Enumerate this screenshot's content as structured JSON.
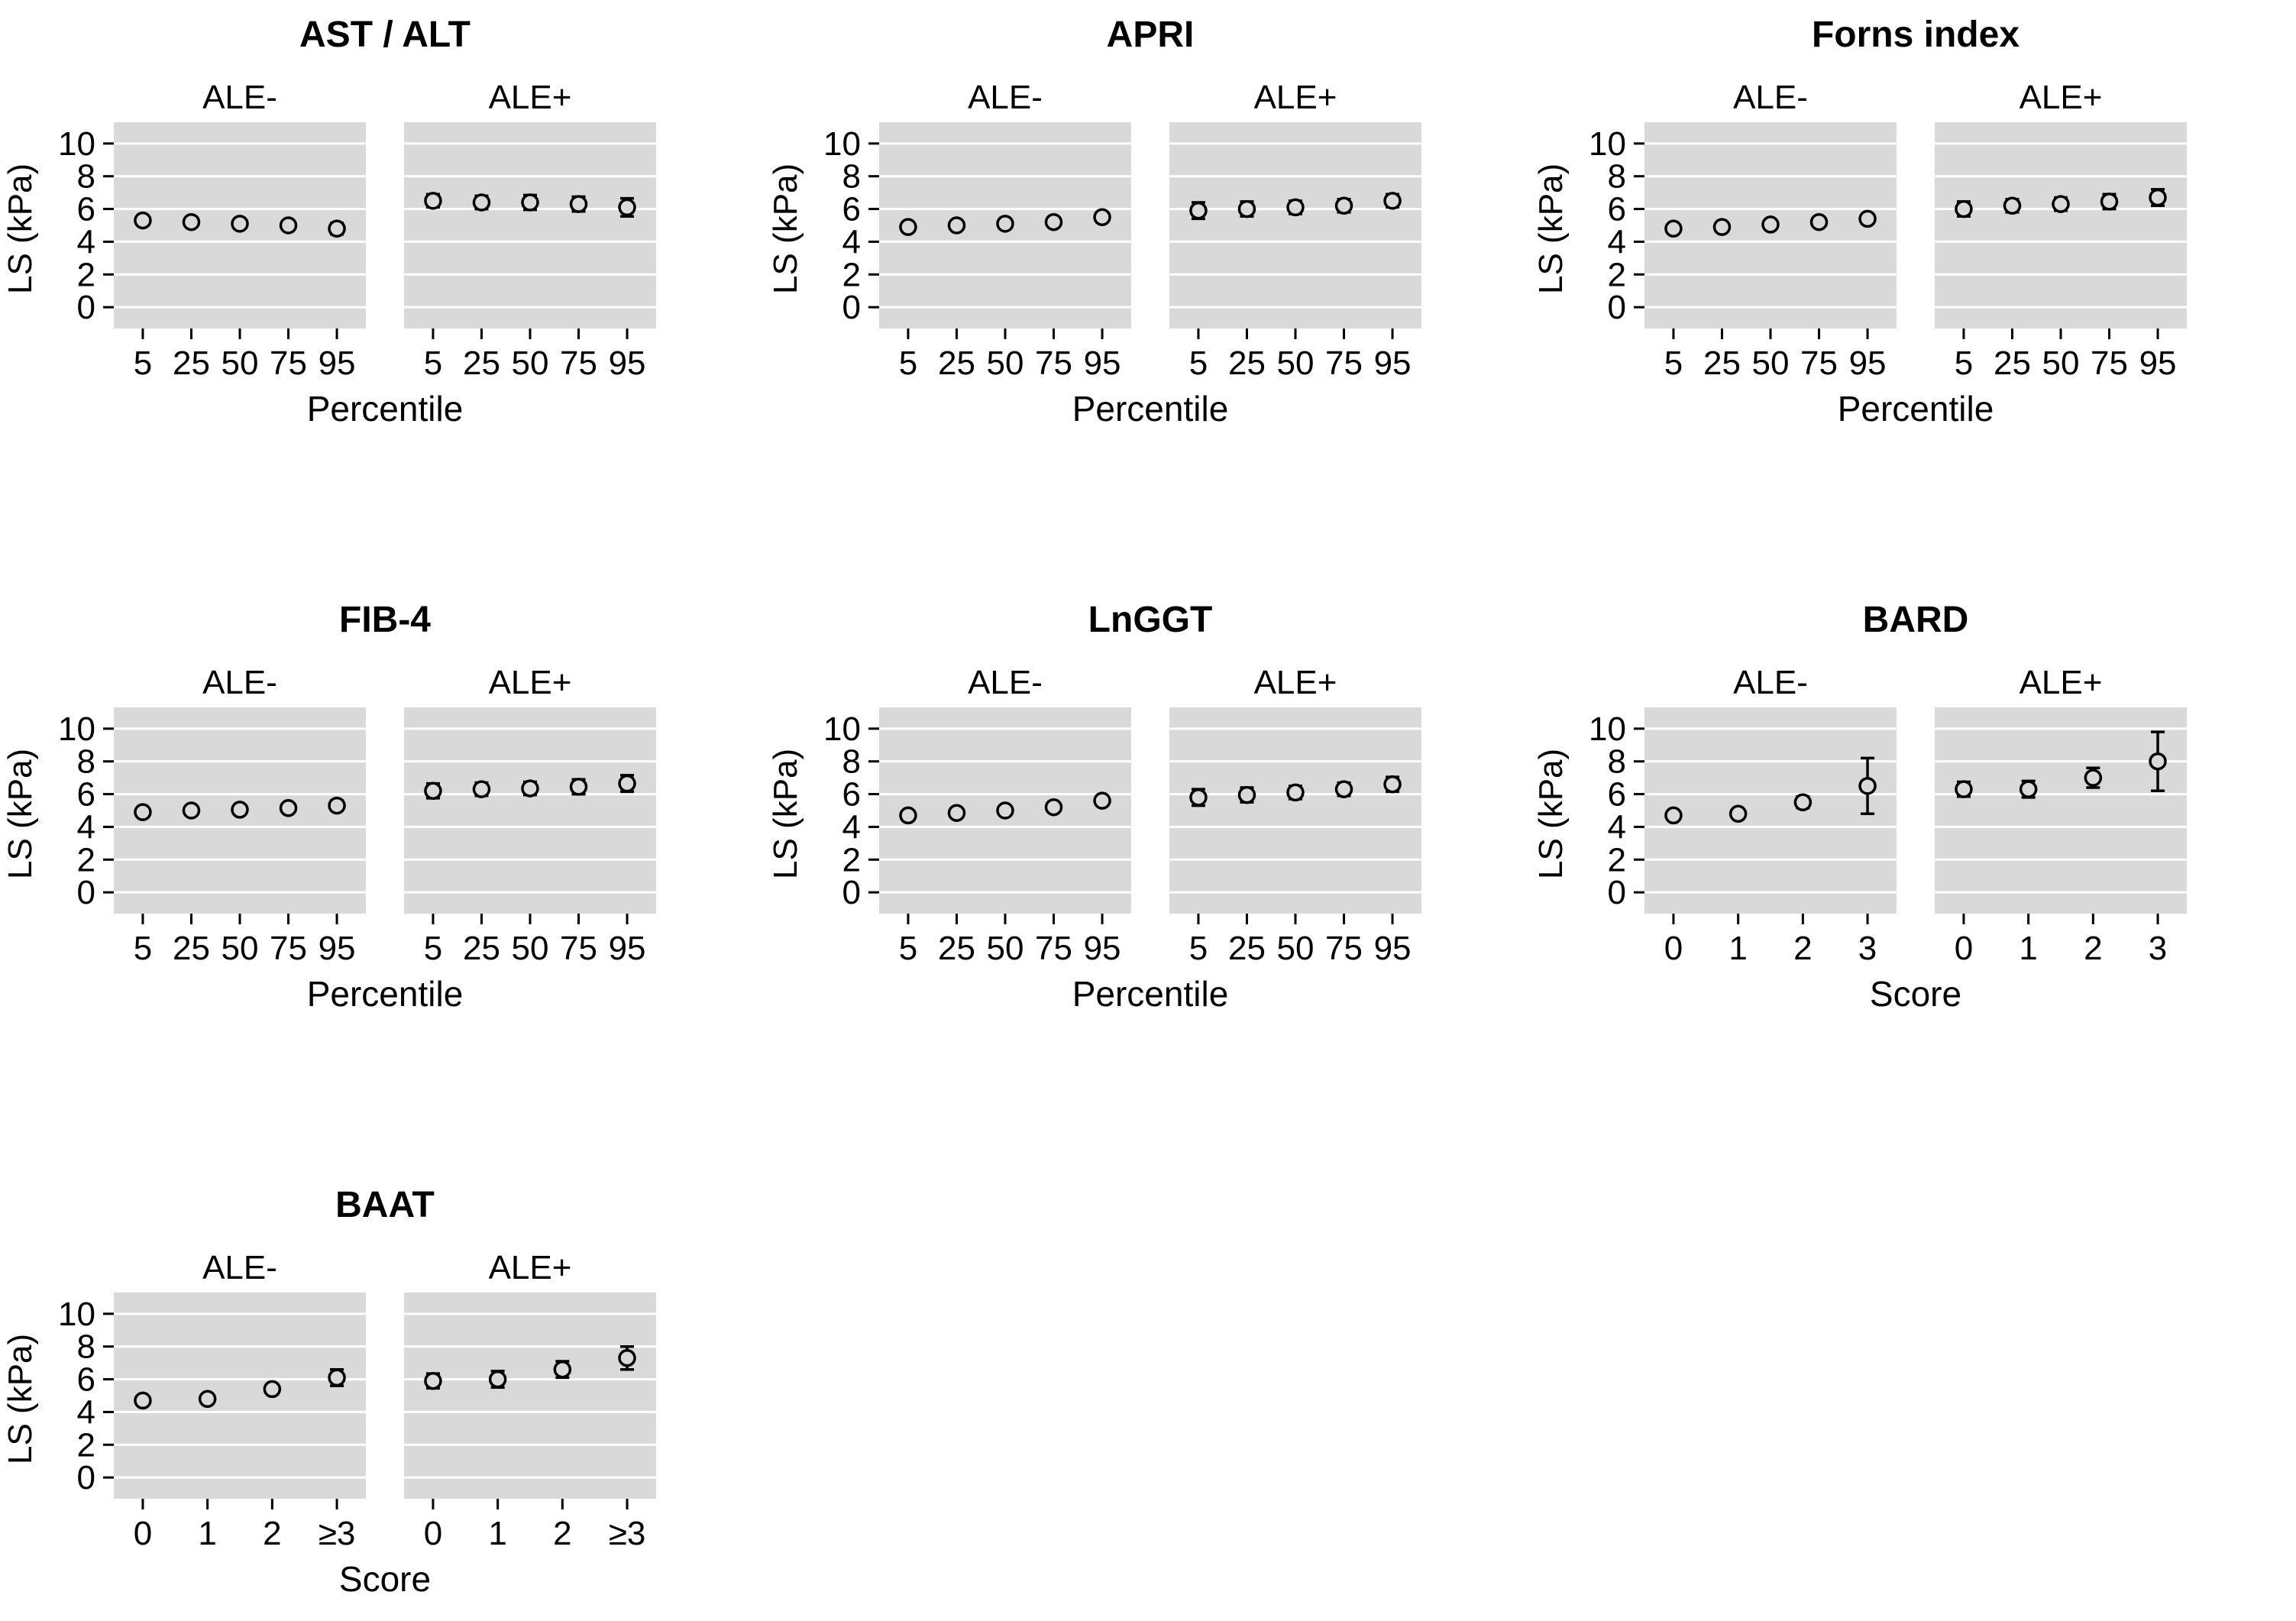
{
  "figure": {
    "background": "#ffffff",
    "panel_bg": "#d9d9d9",
    "grid_color": "#ffffff",
    "marker_color": "#000000"
  },
  "chart_data": [
    {
      "type": "scatter",
      "title": "AST / ALT",
      "xlabel": "Percentile",
      "ylabel": "LS (kPa)",
      "ylim": [
        0,
        10
      ],
      "yticks": [
        0,
        2,
        4,
        6,
        8,
        10
      ],
      "categories": [
        "5",
        "25",
        "50",
        "75",
        "95"
      ],
      "series": [
        {
          "name": "ALE-",
          "values": [
            5.3,
            5.2,
            5.1,
            5.0,
            4.8
          ],
          "errors": [
            0.25,
            0.2,
            0.2,
            0.25,
            0.35
          ]
        },
        {
          "name": "ALE+",
          "values": [
            6.5,
            6.4,
            6.4,
            6.3,
            6.1
          ],
          "errors": [
            0.4,
            0.4,
            0.45,
            0.45,
            0.55
          ]
        }
      ]
    },
    {
      "type": "scatter",
      "title": "APRI",
      "xlabel": "Percentile",
      "ylabel": "LS (kPa)",
      "ylim": [
        0,
        10
      ],
      "yticks": [
        0,
        2,
        4,
        6,
        8,
        10
      ],
      "categories": [
        "5",
        "25",
        "50",
        "75",
        "95"
      ],
      "series": [
        {
          "name": "ALE-",
          "values": [
            4.9,
            5.0,
            5.1,
            5.2,
            5.5
          ],
          "errors": [
            0.25,
            0.2,
            0.2,
            0.25,
            0.3
          ]
        },
        {
          "name": "ALE+",
          "values": [
            5.9,
            6.0,
            6.1,
            6.2,
            6.5
          ],
          "errors": [
            0.5,
            0.45,
            0.4,
            0.4,
            0.4
          ]
        }
      ]
    },
    {
      "type": "scatter",
      "title": "Forns index",
      "xlabel": "Percentile",
      "ylabel": "LS (kPa)",
      "ylim": [
        0,
        10
      ],
      "yticks": [
        0,
        2,
        4,
        6,
        8,
        10
      ],
      "categories": [
        "5",
        "25",
        "50",
        "75",
        "95"
      ],
      "series": [
        {
          "name": "ALE-",
          "values": [
            4.8,
            4.9,
            5.05,
            5.2,
            5.4
          ],
          "errors": [
            0.2,
            0.2,
            0.2,
            0.25,
            0.3
          ]
        },
        {
          "name": "ALE+",
          "values": [
            6.0,
            6.2,
            6.3,
            6.45,
            6.7
          ],
          "errors": [
            0.45,
            0.4,
            0.4,
            0.45,
            0.5
          ]
        }
      ]
    },
    {
      "type": "scatter",
      "title": "FIB-4",
      "xlabel": "Percentile",
      "ylabel": "LS (kPa)",
      "ylim": [
        0,
        10
      ],
      "yticks": [
        0,
        2,
        4,
        6,
        8,
        10
      ],
      "categories": [
        "5",
        "25",
        "50",
        "75",
        "95"
      ],
      "series": [
        {
          "name": "ALE-",
          "values": [
            4.9,
            5.0,
            5.05,
            5.15,
            5.3
          ],
          "errors": [
            0.25,
            0.2,
            0.2,
            0.25,
            0.3
          ]
        },
        {
          "name": "ALE+",
          "values": [
            6.2,
            6.3,
            6.35,
            6.45,
            6.65
          ],
          "errors": [
            0.45,
            0.4,
            0.4,
            0.45,
            0.5
          ]
        }
      ]
    },
    {
      "type": "scatter",
      "title": "LnGGT",
      "xlabel": "Percentile",
      "ylabel": "LS (kPa)",
      "ylim": [
        0,
        10
      ],
      "yticks": [
        0,
        2,
        4,
        6,
        8,
        10
      ],
      "categories": [
        "5",
        "25",
        "50",
        "75",
        "95"
      ],
      "series": [
        {
          "name": "ALE-",
          "values": [
            4.7,
            4.85,
            5.0,
            5.2,
            5.6
          ],
          "errors": [
            0.25,
            0.2,
            0.2,
            0.2,
            0.25
          ]
        },
        {
          "name": "ALE+",
          "values": [
            5.8,
            5.95,
            6.1,
            6.3,
            6.6
          ],
          "errors": [
            0.5,
            0.45,
            0.4,
            0.4,
            0.45
          ]
        }
      ]
    },
    {
      "type": "scatter",
      "title": "BARD",
      "xlabel": "Score",
      "ylabel": "LS (kPa)",
      "ylim": [
        0,
        10
      ],
      "yticks": [
        0,
        2,
        4,
        6,
        8,
        10
      ],
      "categories": [
        "0",
        "1",
        "2",
        "3"
      ],
      "series": [
        {
          "name": "ALE-",
          "values": [
            4.7,
            4.8,
            5.5,
            6.5
          ],
          "errors": [
            0.2,
            0.2,
            0.35,
            1.7
          ]
        },
        {
          "name": "ALE+",
          "values": [
            6.3,
            6.3,
            7.0,
            8.0
          ],
          "errors": [
            0.45,
            0.5,
            0.6,
            1.8
          ]
        }
      ]
    },
    {
      "type": "scatter",
      "title": "BAAT",
      "xlabel": "Score",
      "ylabel": "LS (kPa)",
      "ylim": [
        0,
        10
      ],
      "yticks": [
        0,
        2,
        4,
        6,
        8,
        10
      ],
      "categories": [
        "0",
        "1",
        "2",
        "≥3"
      ],
      "series": [
        {
          "name": "ALE-",
          "values": [
            4.7,
            4.8,
            5.4,
            6.1
          ],
          "errors": [
            0.2,
            0.2,
            0.3,
            0.5
          ]
        },
        {
          "name": "ALE+",
          "values": [
            5.9,
            6.0,
            6.6,
            7.3
          ],
          "errors": [
            0.45,
            0.5,
            0.5,
            0.7
          ]
        }
      ]
    }
  ]
}
